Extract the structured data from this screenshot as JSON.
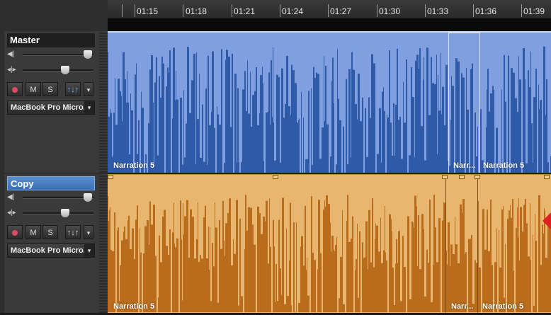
{
  "ruler": {
    "labels": [
      "01:15",
      "01:18",
      "01:21",
      "01:24",
      "01:27",
      "01:30",
      "01:33",
      "01:36",
      "01:39"
    ]
  },
  "tracks": {
    "master": {
      "name": "Master",
      "buttons": {
        "mute": "M",
        "solo": "S",
        "eq": "↑↓↑",
        "caret": "▾"
      },
      "device": "MacBook Pro Micro...",
      "device_caret": "▾",
      "volume_level": 0.85,
      "pan_level": 0.5,
      "clips": [
        {
          "label": "Narration 5"
        },
        {
          "label": "Narr..."
        },
        {
          "label": "Narration 5"
        }
      ],
      "color": "#7f9fe0",
      "wave_color": "#2f5aa8"
    },
    "copy": {
      "name": "Copy",
      "buttons": {
        "mute": "M",
        "solo": "S",
        "eq": "↑↓↑",
        "caret": "▾"
      },
      "device": "MacBook Pro Micro...",
      "device_caret": "▾",
      "volume_level": 0.85,
      "pan_level": 0.5,
      "clips": [
        {
          "label": "Narration 5"
        },
        {
          "label": "Narr..."
        },
        {
          "label": "Narration 5"
        }
      ],
      "color": "#e8b66e",
      "wave_color": "#b86c1c"
    }
  },
  "icons": {
    "volume": "speaker-icon",
    "pan": "pan-icon",
    "record": "record-icon"
  }
}
